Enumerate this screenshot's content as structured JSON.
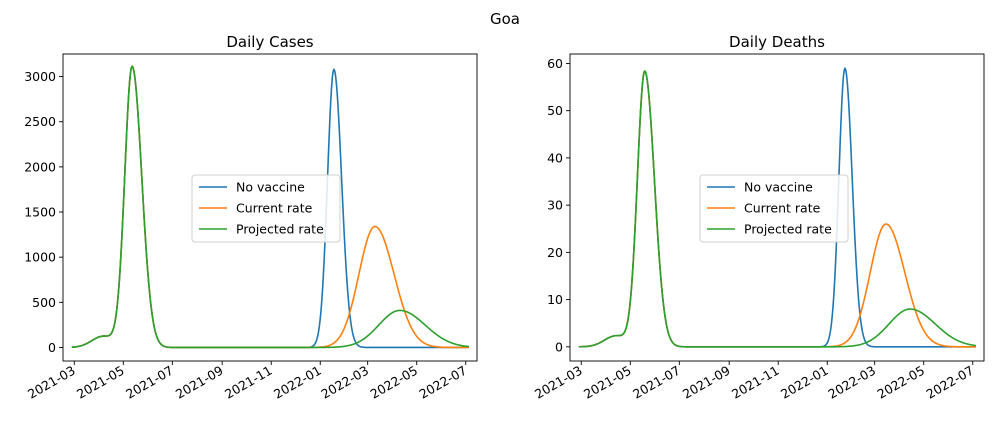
{
  "figure": {
    "suptitle": "Goa"
  },
  "x_ticks": [
    "2021-03",
    "2021-05",
    "2021-07",
    "2021-09",
    "2021-11",
    "2022-01",
    "2022-03",
    "2022-05",
    "2022-07"
  ],
  "colors": {
    "No vaccine": "#1f77b4",
    "Current rate": "#ff7f0e",
    "Projected rate": "#2ca02c"
  },
  "chart_data": [
    {
      "type": "line",
      "title": "Daily Cases",
      "xlabel": "",
      "ylabel": "",
      "xlim": [
        "2021-02-15",
        "2022-07-15"
      ],
      "ylim": [
        -150,
        3250
      ],
      "yticks": [
        0,
        500,
        1000,
        1500,
        2000,
        2500,
        3000
      ],
      "legend": "center",
      "grid": false,
      "series": [
        {
          "name": "No vaccine",
          "peaks": [
            {
              "date": "2021-05-12",
              "value": 3110
            },
            {
              "date": "2022-01-18",
              "value": 3080
            }
          ]
        },
        {
          "name": "Current rate",
          "peaks": [
            {
              "date": "2021-05-12",
              "value": 3110
            },
            {
              "date": "2022-03-10",
              "value": 1340
            }
          ]
        },
        {
          "name": "Projected rate",
          "peaks": [
            {
              "date": "2021-05-12",
              "value": 3110
            },
            {
              "date": "2022-04-10",
              "value": 410
            }
          ]
        }
      ],
      "start_value": 0,
      "end_values": {
        "No vaccine": 0,
        "Current rate": 5,
        "Projected rate": 30
      }
    },
    {
      "type": "line",
      "title": "Daily Deaths",
      "xlabel": "",
      "ylabel": "",
      "xlim": [
        "2021-02-15",
        "2022-07-15"
      ],
      "ylim": [
        -3,
        62
      ],
      "yticks": [
        0,
        10,
        20,
        30,
        40,
        50,
        60
      ],
      "legend": "center",
      "grid": false,
      "series": [
        {
          "name": "No vaccine",
          "peaks": [
            {
              "date": "2021-05-19",
              "value": 58.3
            },
            {
              "date": "2022-01-23",
              "value": 59
            }
          ]
        },
        {
          "name": "Current rate",
          "peaks": [
            {
              "date": "2021-05-19",
              "value": 58.3
            },
            {
              "date": "2022-03-15",
              "value": 26
            }
          ]
        },
        {
          "name": "Projected rate",
          "peaks": [
            {
              "date": "2021-05-19",
              "value": 58.3
            },
            {
              "date": "2022-04-14",
              "value": 8
            }
          ]
        }
      ],
      "start_value": 0,
      "end_values": {
        "No vaccine": 0,
        "Current rate": 0.2,
        "Projected rate": 0.8
      }
    }
  ]
}
